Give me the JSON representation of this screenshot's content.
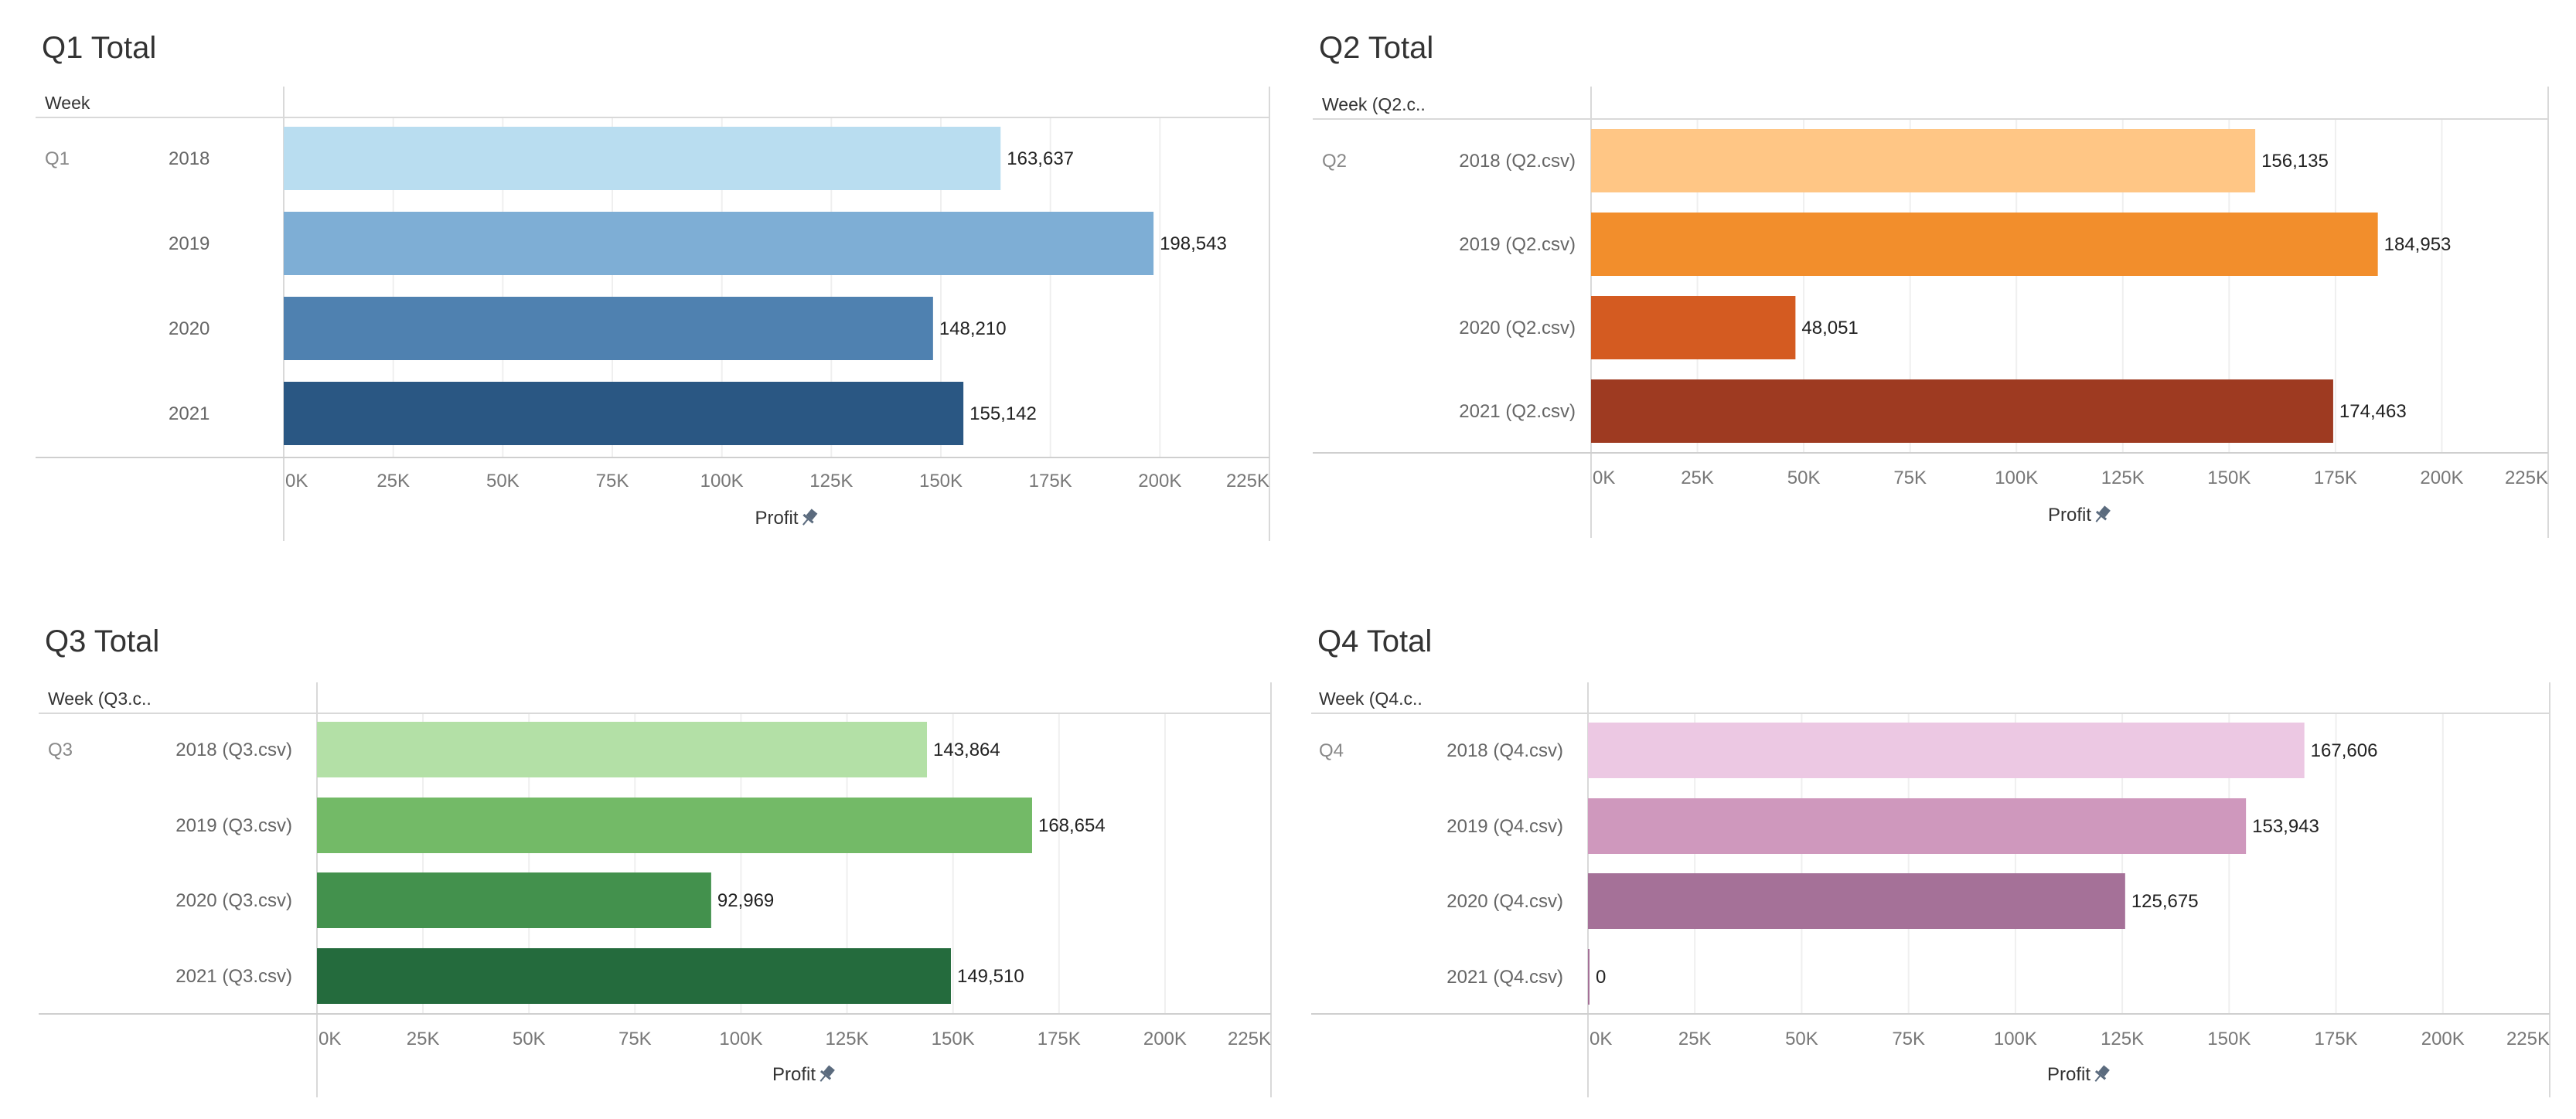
{
  "chart_data": [
    {
      "type": "bar",
      "title": "Q1 Total",
      "row_header": "Week",
      "group_label": "Q1",
      "categories": [
        "2018",
        "2019",
        "2020",
        "2021"
      ],
      "values": [
        163637,
        198543,
        148210,
        155142
      ],
      "value_labels": [
        "163,637",
        "198,543",
        "148,210",
        "155,142"
      ],
      "colors": [
        "#b9ddf0",
        "#7eaed5",
        "#4f81b0",
        "#2a5783"
      ],
      "xlabel": "Profit",
      "xlim": [
        0,
        225000
      ],
      "x_ticks": [
        "0K",
        "25K",
        "50K",
        "75K",
        "100K",
        "125K",
        "150K",
        "175K",
        "200K",
        "225K"
      ],
      "grid": true
    },
    {
      "type": "bar",
      "title": "Q2 Total",
      "row_header": "Week (Q2.c..",
      "group_label": "Q2",
      "categories": [
        "2018 (Q2.csv)",
        "2019 (Q2.csv)",
        "2020 (Q2.csv)",
        "2021 (Q2.csv)"
      ],
      "values": [
        156135,
        184953,
        48051,
        174463
      ],
      "value_labels": [
        "156,135",
        "184,953",
        "48,051",
        "174,463"
      ],
      "colors": [
        "#ffc685",
        "#f28e2c",
        "#d45b21",
        "#9e3a21"
      ],
      "xlabel": "Profit",
      "xlim": [
        0,
        225000
      ],
      "x_ticks": [
        "0K",
        "25K",
        "50K",
        "75K",
        "100K",
        "125K",
        "150K",
        "175K",
        "200K",
        "225K"
      ],
      "grid": true
    },
    {
      "type": "bar",
      "title": "Q3 Total",
      "row_header": "Week (Q3.c..",
      "group_label": "Q3",
      "categories": [
        "2018 (Q3.csv)",
        "2019 (Q3.csv)",
        "2020 (Q3.csv)",
        "2021 (Q3.csv)"
      ],
      "values": [
        143864,
        168654,
        92969,
        149510
      ],
      "value_labels": [
        "143,864",
        "168,654",
        "92,969",
        "149,510"
      ],
      "colors": [
        "#b3e0a6",
        "#73ba67",
        "#43914d",
        "#246b3d"
      ],
      "xlabel": "Profit",
      "xlim": [
        0,
        225000
      ],
      "x_ticks": [
        "0K",
        "25K",
        "50K",
        "75K",
        "100K",
        "125K",
        "150K",
        "175K",
        "200K",
        "225K"
      ],
      "grid": true
    },
    {
      "type": "bar",
      "title": "Q4 Total",
      "row_header": "Week (Q4.c..",
      "group_label": "Q4",
      "categories": [
        "2018 (Q4.csv)",
        "2019 (Q4.csv)",
        "2020 (Q4.csv)",
        "2021 (Q4.csv)"
      ],
      "values": [
        167606,
        153943,
        125675,
        0
      ],
      "value_labels": [
        "167,606",
        "153,943",
        "125,675",
        "0"
      ],
      "colors": [
        "#ecc8e3",
        "#cf98bd",
        "#a57198",
        "#a57198"
      ],
      "xlabel": "Profit",
      "xlim": [
        0,
        225000
      ],
      "x_ticks": [
        "0K",
        "25K",
        "50K",
        "75K",
        "100K",
        "125K",
        "150K",
        "175K",
        "200K",
        "225K"
      ],
      "grid": true
    }
  ]
}
